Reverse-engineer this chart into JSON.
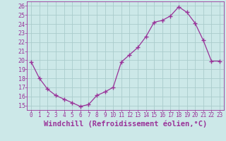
{
  "x": [
    0,
    1,
    2,
    3,
    4,
    5,
    6,
    7,
    8,
    9,
    10,
    11,
    12,
    13,
    14,
    15,
    16,
    17,
    18,
    19,
    20,
    21,
    22,
    23
  ],
  "y": [
    19.8,
    18.0,
    16.8,
    16.1,
    15.7,
    15.3,
    14.9,
    15.1,
    16.1,
    16.5,
    17.0,
    19.8,
    20.6,
    21.4,
    22.6,
    24.2,
    24.4,
    24.9,
    25.9,
    25.3,
    24.1,
    22.2,
    19.9,
    19.9
  ],
  "line_color": "#993399",
  "marker": "+",
  "marker_size": 4,
  "bg_color": "#cce8e8",
  "grid_color": "#aacccc",
  "xlabel": "Windchill (Refroidissement éolien,°C)",
  "xlabel_fontsize": 7.5,
  "tick_color": "#993399",
  "label_color": "#993399",
  "ylim": [
    14.5,
    26.5
  ],
  "xlim": [
    -0.5,
    23.5
  ],
  "yticks": [
    15,
    16,
    17,
    18,
    19,
    20,
    21,
    22,
    23,
    24,
    25,
    26
  ],
  "xticks": [
    0,
    1,
    2,
    3,
    4,
    5,
    6,
    7,
    8,
    9,
    10,
    11,
    12,
    13,
    14,
    15,
    16,
    17,
    18,
    19,
    20,
    21,
    22,
    23
  ]
}
